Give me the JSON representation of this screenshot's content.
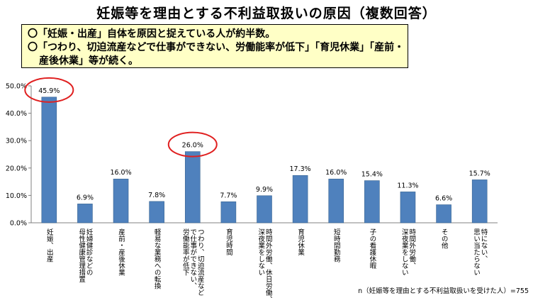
{
  "title": "妊娠等を理由とする不利益取扱いの原因（複数回答）",
  "summary": {
    "line1": "〇「妊娠・出産」自体を原因と捉えている人が約半数。",
    "line2": "〇「つわり、切迫流産などで仕事ができない、労働能率が低下」「育児休業」「産前・",
    "line3": "産後休業」等が続く。"
  },
  "footnote": "n（妊娠等を理由とする不利益取扱いを受けた人）=755",
  "colors": {
    "bar": "#4f81bd",
    "bar_border": "#3a6591",
    "highlight": "#e02020",
    "box_bg": "#ffffc6"
  },
  "chart_data": {
    "type": "bar",
    "ylim": [
      0,
      50
    ],
    "yticks": [
      "0.0%",
      "10.0%",
      "20.0%",
      "30.0%",
      "40.0%",
      "50.0%"
    ],
    "grid": false,
    "categories": [
      [
        "妊娠、出産"
      ],
      [
        "妊婦健診などの",
        "母性健康管理措置"
      ],
      [
        "産前・産後休業"
      ],
      [
        "軽易な業務への転換"
      ],
      [
        "つわり、切迫流産など",
        "で仕事ができない、",
        "労働能率が低下"
      ],
      [
        "育児時間"
      ],
      [
        "時間外労働、休日労働、",
        "深夜業をしない"
      ],
      [
        "育児休業"
      ],
      [
        "短時間勤務"
      ],
      [
        "子の看護休暇"
      ],
      [
        "時間外労働、",
        "深夜業をしない"
      ],
      [
        "その他"
      ],
      [
        "特にない、",
        "思い当たらない"
      ]
    ],
    "values": [
      45.9,
      6.9,
      16.0,
      7.8,
      26.0,
      7.7,
      9.9,
      17.3,
      16.0,
      15.4,
      11.3,
      6.6,
      15.7
    ],
    "data_labels": [
      "45.9%",
      "6.9%",
      "16.0%",
      "7.8%",
      "26.0%",
      "7.7%",
      "9.9%",
      "17.3%",
      "16.0%",
      "15.4%",
      "11.3%",
      "6.6%",
      "15.7%"
    ],
    "highlighted": [
      "45.9%",
      "26.0%"
    ]
  }
}
